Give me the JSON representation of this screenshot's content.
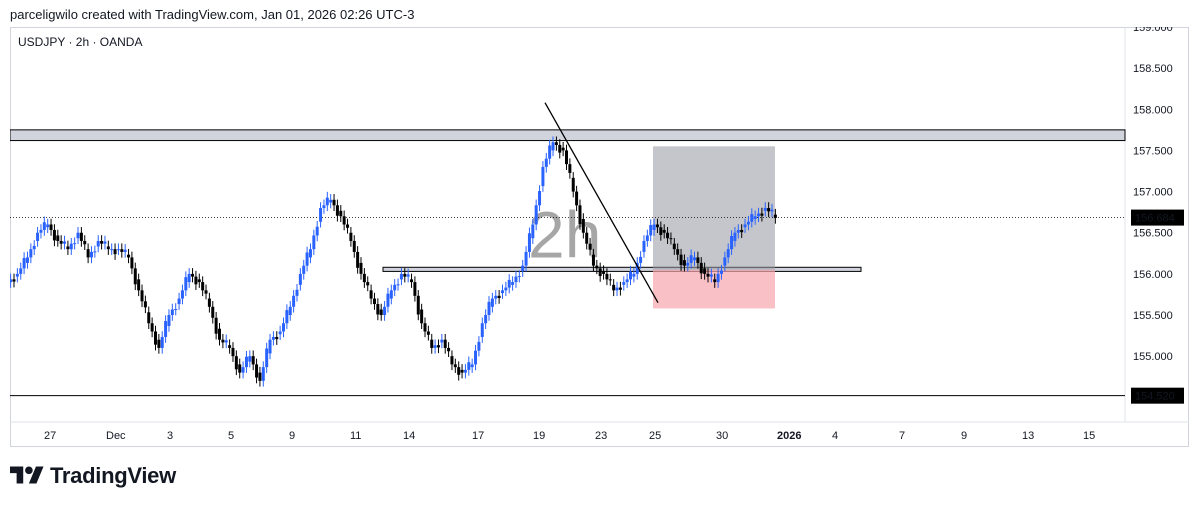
{
  "header": {
    "text": "parceligwilo created with TradingView.com, Jan 01, 2026 02:26 UTC-3"
  },
  "symbol": "USDJPY · 2h · OANDA",
  "watermark": "2h",
  "brand": {
    "name": "TradingView"
  },
  "colors": {
    "bull": "#2962ff",
    "bear": "#000000",
    "box_gray": "#9598a1",
    "box_red": "#f7a6ad"
  },
  "chart_data": {
    "type": "candlestick",
    "symbol": "USDJPY",
    "interval": "2h",
    "broker": "OANDA",
    "ylim": [
      154.2,
      159.0
    ],
    "y_ticks": [
      "155.000",
      "155.500",
      "156.000",
      "156.500",
      "157.000",
      "157.500",
      "158.000",
      "158.500",
      "159.000"
    ],
    "x_ticks": [
      "27",
      "Dec",
      "3",
      "5",
      "9",
      "11",
      "14",
      "17",
      "19",
      "23",
      "25",
      "30",
      "2026",
      "4",
      "7",
      "9",
      "13",
      "15"
    ],
    "price_labels": {
      "last": "156.684",
      "support": "154.520"
    },
    "last_price": 156.684,
    "support_level": 154.52,
    "resistance_zone": [
      157.62,
      157.75
    ],
    "mid_zone": [
      156.03,
      156.08
    ],
    "position_box": {
      "entry": 156.05,
      "target": 157.55,
      "stop": 155.58
    },
    "close_path": [
      [
        0,
        156.0
      ],
      [
        1,
        156.2
      ],
      [
        2,
        156.5
      ],
      [
        3,
        156.6
      ],
      [
        4,
        156.4
      ],
      [
        5,
        156.3
      ],
      [
        6,
        156.5
      ],
      [
        7,
        156.2
      ],
      [
        8,
        156.4
      ],
      [
        9,
        156.3
      ],
      [
        10,
        156.3
      ],
      [
        11,
        156.2
      ],
      [
        12,
        155.8
      ],
      [
        13,
        155.4
      ],
      [
        14,
        155.1
      ],
      [
        15,
        155.5
      ],
      [
        16,
        155.7
      ],
      [
        17,
        156.0
      ],
      [
        18,
        155.9
      ],
      [
        19,
        155.6
      ],
      [
        20,
        155.2
      ],
      [
        21,
        155.1
      ],
      [
        22,
        154.8
      ],
      [
        23,
        155.0
      ],
      [
        24,
        154.7
      ],
      [
        25,
        155.2
      ],
      [
        26,
        155.3
      ],
      [
        27,
        155.6
      ],
      [
        28,
        156.0
      ],
      [
        29,
        156.3
      ],
      [
        30,
        156.8
      ],
      [
        31,
        156.9
      ],
      [
        32,
        156.7
      ],
      [
        33,
        156.4
      ],
      [
        34,
        156.0
      ],
      [
        35,
        155.7
      ],
      [
        36,
        155.5
      ],
      [
        37,
        155.8
      ],
      [
        38,
        156.0
      ],
      [
        39,
        155.9
      ],
      [
        40,
        155.4
      ],
      [
        41,
        155.1
      ],
      [
        42,
        155.2
      ],
      [
        43,
        154.9
      ],
      [
        44,
        154.8
      ],
      [
        45,
        154.9
      ],
      [
        46,
        155.4
      ],
      [
        47,
        155.7
      ],
      [
        48,
        155.8
      ],
      [
        49,
        155.9
      ],
      [
        50,
        156.1
      ],
      [
        51,
        156.6
      ],
      [
        52,
        157.3
      ],
      [
        53,
        157.6
      ],
      [
        54,
        157.5
      ],
      [
        55,
        157.0
      ],
      [
        56,
        156.5
      ],
      [
        57,
        156.1
      ],
      [
        58,
        156.0
      ],
      [
        59,
        155.8
      ],
      [
        60,
        155.9
      ],
      [
        61,
        156.0
      ],
      [
        62,
        156.4
      ],
      [
        63,
        156.6
      ],
      [
        64,
        156.5
      ],
      [
        65,
        156.3
      ],
      [
        66,
        156.1
      ],
      [
        67,
        156.2
      ],
      [
        68,
        156.0
      ],
      [
        69,
        155.9
      ],
      [
        70,
        156.2
      ],
      [
        71,
        156.5
      ],
      [
        72,
        156.6
      ],
      [
        73,
        156.7
      ],
      [
        74,
        156.8
      ],
      [
        75,
        156.68
      ]
    ]
  }
}
